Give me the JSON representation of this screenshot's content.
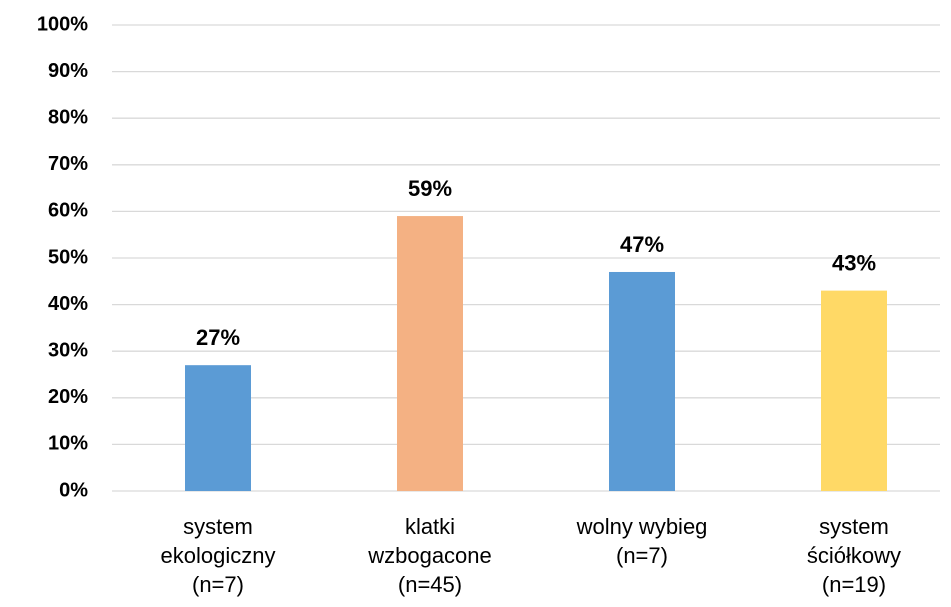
{
  "chart_data": {
    "type": "bar",
    "categories": [
      "system\nekologiczny\n(n=7)",
      "klatki\nwzbogacone\n(n=45)",
      "wolny wybieg\n(n=7)",
      "system\nściółkowy\n(n=19)"
    ],
    "values": [
      27,
      59,
      47,
      43
    ],
    "value_labels": [
      "27%",
      "59%",
      "47%",
      "43%"
    ],
    "colors": [
      "#5b9bd5",
      "#f4b183",
      "#5b9bd5",
      "#ffd966"
    ],
    "ylim": [
      0,
      100
    ],
    "yticks": [
      {
        "value": 0,
        "label": "0%"
      },
      {
        "value": 10,
        "label": "10%"
      },
      {
        "value": 20,
        "label": "20%"
      },
      {
        "value": 30,
        "label": "30%"
      },
      {
        "value": 40,
        "label": "40%"
      },
      {
        "value": 50,
        "label": "50%"
      },
      {
        "value": 60,
        "label": "60%"
      },
      {
        "value": 70,
        "label": "70%"
      },
      {
        "value": 80,
        "label": "80%"
      },
      {
        "value": 90,
        "label": "90%"
      },
      {
        "value": 100,
        "label": "100%"
      }
    ],
    "grid": true
  }
}
